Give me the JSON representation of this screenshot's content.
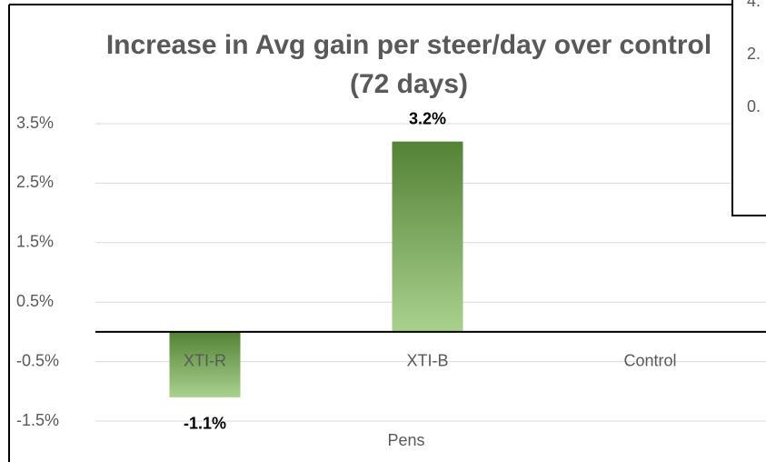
{
  "chart_data": {
    "type": "bar",
    "title": "Increase in Avg gain per steer/day over control (72 days)",
    "x_label": "Pens",
    "categories": [
      "XTI-R",
      "XTI-B",
      "Control"
    ],
    "values": [
      -1.1,
      3.2,
      0
    ],
    "value_labels": [
      "-1.1%",
      "3.2%",
      null
    ],
    "color": "#6aa843",
    "ylim": [
      -1.5,
      3.5
    ],
    "yticks": [
      {
        "value": -1.5,
        "label": "-1.5%"
      },
      {
        "value": -0.5,
        "label": "-0.5%"
      },
      {
        "value": 0.5,
        "label": "0.5%"
      },
      {
        "value": 1.5,
        "label": "1.5%"
      },
      {
        "value": 2.5,
        "label": "2.5%"
      },
      {
        "value": 3.5,
        "label": "3.5%"
      }
    ],
    "grid": true
  },
  "other_chart_fragment": {
    "labels": [
      "4.",
      "2.",
      "0."
    ]
  }
}
